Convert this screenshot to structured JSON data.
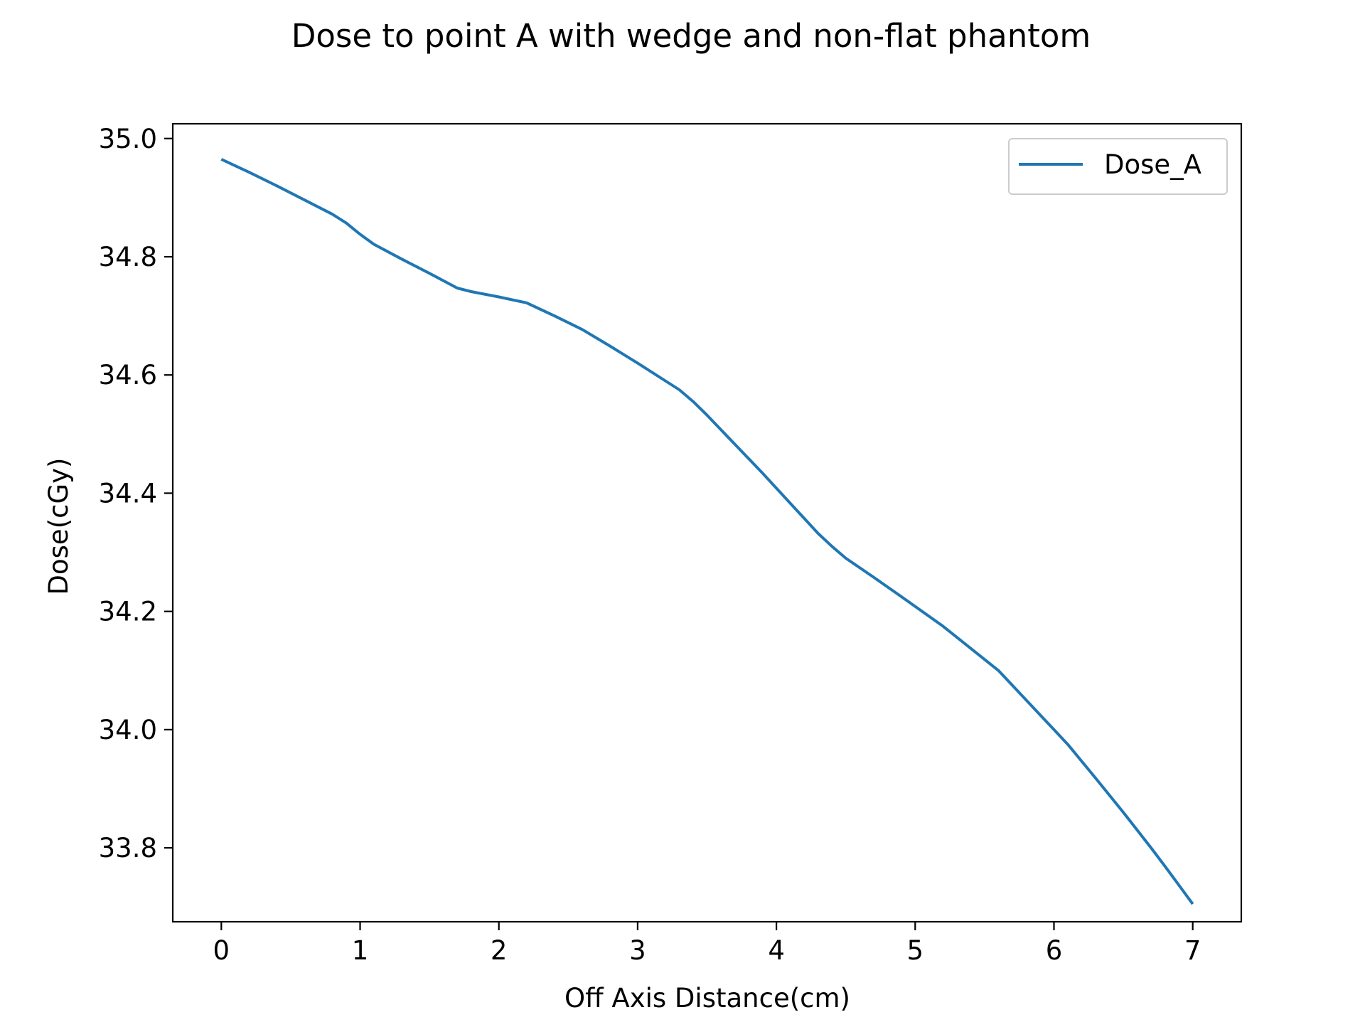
{
  "chart_data": {
    "type": "line",
    "title": "Dose to point A with wedge and non-flat phantom",
    "xlabel": "Off Axis Distance(cm)",
    "ylabel": "Dose(cGy)",
    "xlim": [
      -0.35,
      7.35
    ],
    "ylim": [
      33.675,
      35.025
    ],
    "xticks": [
      0,
      1,
      2,
      3,
      4,
      5,
      6,
      7
    ],
    "xtick_labels": [
      "0",
      "1",
      "2",
      "3",
      "4",
      "5",
      "6",
      "7"
    ],
    "yticks": [
      33.8,
      34.0,
      34.2,
      34.4,
      34.6,
      34.8,
      35.0
    ],
    "ytick_labels": [
      "33.8",
      "34.0",
      "34.2",
      "34.4",
      "34.6",
      "34.8",
      "35.0"
    ],
    "grid": false,
    "legend_position": "top-right",
    "series": [
      {
        "name": "Dose_A",
        "color": "#1f77b4",
        "x": [
          0,
          0.2,
          0.4,
          0.6,
          0.8,
          0.9,
          1.0,
          1.1,
          1.3,
          1.5,
          1.7,
          1.8,
          2.0,
          2.2,
          2.4,
          2.6,
          2.8,
          3.0,
          3.2,
          3.3,
          3.4,
          3.5,
          3.7,
          3.9,
          4.1,
          4.3,
          4.4,
          4.5,
          4.7,
          4.9,
          5.2,
          5.6,
          6.0,
          6.1,
          6.3,
          6.5,
          6.7,
          6.8,
          6.9,
          7.0
        ],
        "y": [
          34.965,
          34.943,
          34.92,
          34.896,
          34.872,
          34.857,
          34.838,
          34.821,
          34.796,
          34.772,
          34.747,
          34.741,
          34.732,
          34.722,
          34.7,
          34.677,
          34.649,
          34.62,
          34.59,
          34.575,
          34.555,
          34.532,
          34.483,
          34.434,
          34.383,
          34.332,
          34.31,
          34.29,
          34.258,
          34.225,
          34.175,
          34.1,
          34.0,
          33.975,
          33.918,
          33.86,
          33.8,
          33.769,
          33.737,
          33.705
        ]
      }
    ]
  }
}
